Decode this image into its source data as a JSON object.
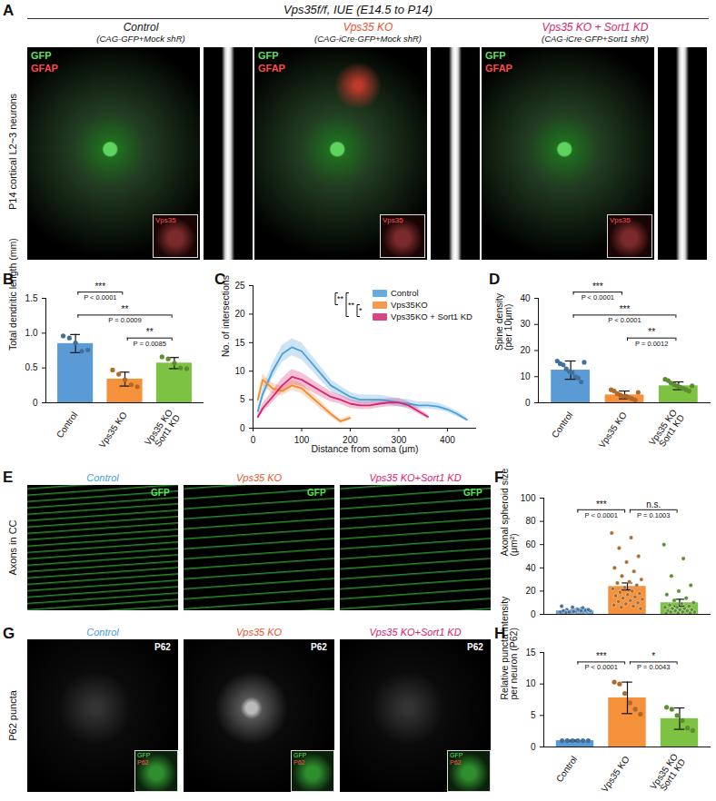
{
  "figure": {
    "title": "Vps35f/f, IUE (E14.5 to P14)",
    "panel_letters": [
      "A",
      "B",
      "C",
      "D",
      "E",
      "F",
      "G",
      "H"
    ],
    "A": {
      "row_label": "P14 cortical L2~3 neurons",
      "columns": [
        {
          "title": "Control",
          "subtitle": "(CAG-GFP+Mock shR)"
        },
        {
          "title": "Vps35 KO",
          "subtitle": "(CAG-iCre-GFP+Mock shR)"
        },
        {
          "title": "Vps35 KO + Sort1 KD",
          "subtitle": "(CAG-iCre-GFP+Sort1 shR)"
        }
      ],
      "channels": [
        "GFP",
        "GFAP"
      ],
      "inset": "Vps35"
    },
    "E": {
      "row_label": "Axons in CC",
      "columns": [
        "Control",
        "Vps35 KO",
        "Vps35 KO+Sort1 KD"
      ],
      "channel": "GFP"
    },
    "G": {
      "row_label": "P62 puncta",
      "columns": [
        "Control",
        "Vps35 KO",
        "Vps35 KO+Sort1 KD"
      ],
      "channel": "P62",
      "inset_channels": [
        "GFP",
        "P62"
      ]
    }
  },
  "chart_data": [
    {
      "type": "bar",
      "ylabel": "Total dendritic length (mm)",
      "categories": [
        "Control",
        "Vps35 KO",
        "Vps35 KO\nSort1 KD"
      ],
      "values": [
        0.85,
        0.34,
        0.57
      ],
      "errors": [
        0.13,
        0.1,
        0.08
      ],
      "points": [
        [
          0.96,
          0.93,
          0.86,
          0.74,
          0.76
        ],
        [
          0.47,
          0.41,
          0.33,
          0.26,
          0.23
        ],
        [
          0.66,
          0.63,
          0.57,
          0.5,
          0.49
        ]
      ],
      "colors": [
        "#5b9bd5",
        "#f4913a",
        "#7dc243"
      ],
      "ylim": [
        0,
        1.5
      ],
      "yticks": [
        0,
        0.5,
        {
          "value": 1,
          "label": "1.0"
        },
        1.5
      ],
      "comparisons": [
        {
          "from": 0,
          "to": 1,
          "label": "***",
          "p": "P < 0.0001"
        },
        {
          "from": 0,
          "to": 2,
          "label": "**",
          "p": "P = 0.0009"
        },
        {
          "from": 1,
          "to": 2,
          "label": "**",
          "p": "P = 0.0085"
        }
      ]
    },
    {
      "type": "line",
      "xlabel": "Distance from soma (μm)",
      "ylabel": "No. of intersections",
      "x": [
        10,
        20,
        40,
        60,
        80,
        100,
        120,
        140,
        160,
        180,
        200,
        220,
        240,
        260,
        280,
        300,
        320,
        340,
        360,
        380,
        400,
        420,
        440
      ],
      "series": [
        {
          "name": "Control",
          "color": "#4a9fd8",
          "values": [
            3,
            6,
            10,
            13,
            14.2,
            13.5,
            11.5,
            9.5,
            7.5,
            6.5,
            5.5,
            5,
            5,
            5,
            4.8,
            4.5,
            4.3,
            4,
            4,
            3.8,
            3.3,
            2.5,
            1.5
          ],
          "errors": [
            0.6,
            1,
            1.3,
            1.5,
            1.5,
            1.5,
            1.3,
            1.2,
            1,
            0.9,
            0.8,
            0.8,
            0.8,
            0.8,
            0.7,
            0.7,
            0.7,
            0.6,
            0.6,
            0.6,
            0.5,
            0.5,
            0.4
          ]
        },
        {
          "name": "Vps35KO",
          "color": "#f28a30",
          "values": [
            5,
            8.5,
            7,
            6.5,
            7.5,
            7,
            5.5,
            4,
            2.5,
            1.2,
            1.8,
            null,
            null,
            null,
            null,
            null,
            null,
            null,
            null,
            null,
            null,
            null,
            null
          ],
          "errors": [
            0.8,
            1,
            0.9,
            0.8,
            0.9,
            0.9,
            0.8,
            0.7,
            0.5,
            0.4,
            0.4,
            null,
            null,
            null,
            null,
            null,
            null,
            null,
            null,
            null,
            null,
            null,
            null
          ]
        },
        {
          "name": "Vps35KO + Sort1 KD",
          "color": "#d6246e",
          "values": [
            2,
            3.5,
            5.5,
            7.5,
            9,
            8.5,
            7.5,
            6.5,
            5.5,
            5,
            4.3,
            4,
            4,
            4.3,
            4.5,
            4.5,
            4,
            3,
            2,
            null,
            null,
            null,
            null
          ],
          "errors": [
            0.5,
            0.8,
            1,
            1.2,
            1.3,
            1.2,
            1.1,
            1,
            0.9,
            0.8,
            0.8,
            0.7,
            0.7,
            0.7,
            0.7,
            0.7,
            0.6,
            0.5,
            0.4,
            null,
            null,
            null,
            null
          ]
        }
      ],
      "xlim": [
        0,
        460
      ],
      "xticks": [
        0,
        100,
        200,
        300,
        400
      ],
      "ylim": [
        0,
        25
      ],
      "yticks": [
        0,
        5,
        10,
        15,
        20,
        25
      ],
      "legend": "top-right",
      "comparisons": [
        {
          "from": 0,
          "to": 1,
          "label": "**"
        },
        {
          "from": 0,
          "to": 2,
          "label": "**"
        },
        {
          "from": 1,
          "to": 2,
          "label": "*"
        }
      ]
    },
    {
      "type": "bar",
      "ylabel": "Spine density\n(per 10μm)",
      "categories": [
        "Control",
        "Vps35 KO",
        "Vps35 KO\nSort1 KD"
      ],
      "values": [
        12.5,
        3,
        6.5
      ],
      "errors": [
        3.5,
        1.5,
        1.5
      ],
      "points": [
        [
          16,
          15,
          14.5,
          13,
          12,
          11.5,
          10,
          9.5,
          8,
          15.5
        ],
        [
          5,
          4.5,
          3.5,
          3,
          2.5,
          2.5,
          2,
          1.5,
          1,
          4
        ],
        [
          9,
          8.5,
          7.5,
          7,
          6.5,
          6,
          5.5,
          5,
          4.5,
          6.5
        ]
      ],
      "colors": [
        "#5b9bd5",
        "#f4913a",
        "#7dc243"
      ],
      "ylim": [
        0,
        40
      ],
      "yticks": [
        0,
        10,
        20,
        30,
        40
      ],
      "comparisons": [
        {
          "from": 0,
          "to": 1,
          "label": "***",
          "p": "P < 0.0001"
        },
        {
          "from": 0,
          "to": 2,
          "label": "***",
          "p": "P < 0.0001"
        },
        {
          "from": 1,
          "to": 2,
          "label": "**",
          "p": "P = 0.0012"
        }
      ]
    },
    {
      "type": "bar",
      "ylabel": "Axonal spheroid size\n(μm²)",
      "categories": [
        "Control",
        "Vps35 KO",
        "Vps35 KO+Sort1 KD"
      ],
      "values": [
        3,
        24,
        10
      ],
      "errors": [
        0.6,
        3,
        3
      ],
      "points": [
        [
          2,
          3,
          4,
          2.5,
          3.5,
          1.5,
          5,
          2,
          3,
          4.5,
          2.5,
          3,
          6,
          2,
          3.5,
          1,
          4,
          2.5,
          3,
          5.5,
          2,
          3,
          4,
          1.5,
          3.5,
          2.5,
          7,
          3,
          2,
          4
        ],
        [
          70,
          66,
          57,
          50,
          45,
          40,
          37,
          33,
          30,
          28,
          27,
          25,
          23,
          22,
          20,
          19,
          18,
          17,
          16,
          15,
          14,
          13,
          12,
          11,
          10,
          9,
          8,
          7,
          6,
          5
        ],
        [
          60,
          48,
          33,
          25,
          20,
          17,
          14,
          12,
          10,
          9,
          8,
          7,
          6,
          6,
          5,
          5,
          4,
          4,
          3,
          3,
          3,
          2,
          2,
          2,
          1,
          1,
          1
        ]
      ],
      "colors": [
        "#5b9bd5",
        "#f4913a",
        "#7dc243"
      ],
      "ylim": [
        0,
        100
      ],
      "yticks": [
        0,
        20,
        40,
        60,
        80,
        100
      ],
      "tick_labels": "y",
      "comparisons": [
        {
          "from": 0,
          "to": 1,
          "label": "***",
          "p": "P < 0.0001"
        },
        {
          "from": 1,
          "to": 2,
          "label": "n.s.",
          "p": "P = 0.1003"
        }
      ]
    },
    {
      "type": "bar",
      "ylabel": "Relative puncta intensity\nper neuron (P62)",
      "categories": [
        "Control",
        "Vps35 KO",
        "Vps35 KO\nSort1 KD"
      ],
      "values": [
        1,
        7.8,
        4.5
      ],
      "errors": [
        0.1,
        2.5,
        1.7
      ],
      "points": [
        [
          1,
          1,
          1,
          1,
          1,
          1
        ],
        [
          10.3,
          10,
          8.5,
          7,
          6,
          5.2
        ],
        [
          6.3,
          6,
          5,
          4.2,
          3,
          2.6
        ]
      ],
      "colors": [
        "#5b9bd5",
        "#f4913a",
        "#7dc243"
      ],
      "ylim": [
        0,
        15
      ],
      "yticks": [
        0,
        5,
        10,
        15
      ],
      "comparisons": [
        {
          "from": 0,
          "to": 1,
          "label": "***",
          "p": "P < 0.0001"
        },
        {
          "from": 1,
          "to": 2,
          "label": "*",
          "p": "P = 0.0043"
        }
      ]
    }
  ]
}
